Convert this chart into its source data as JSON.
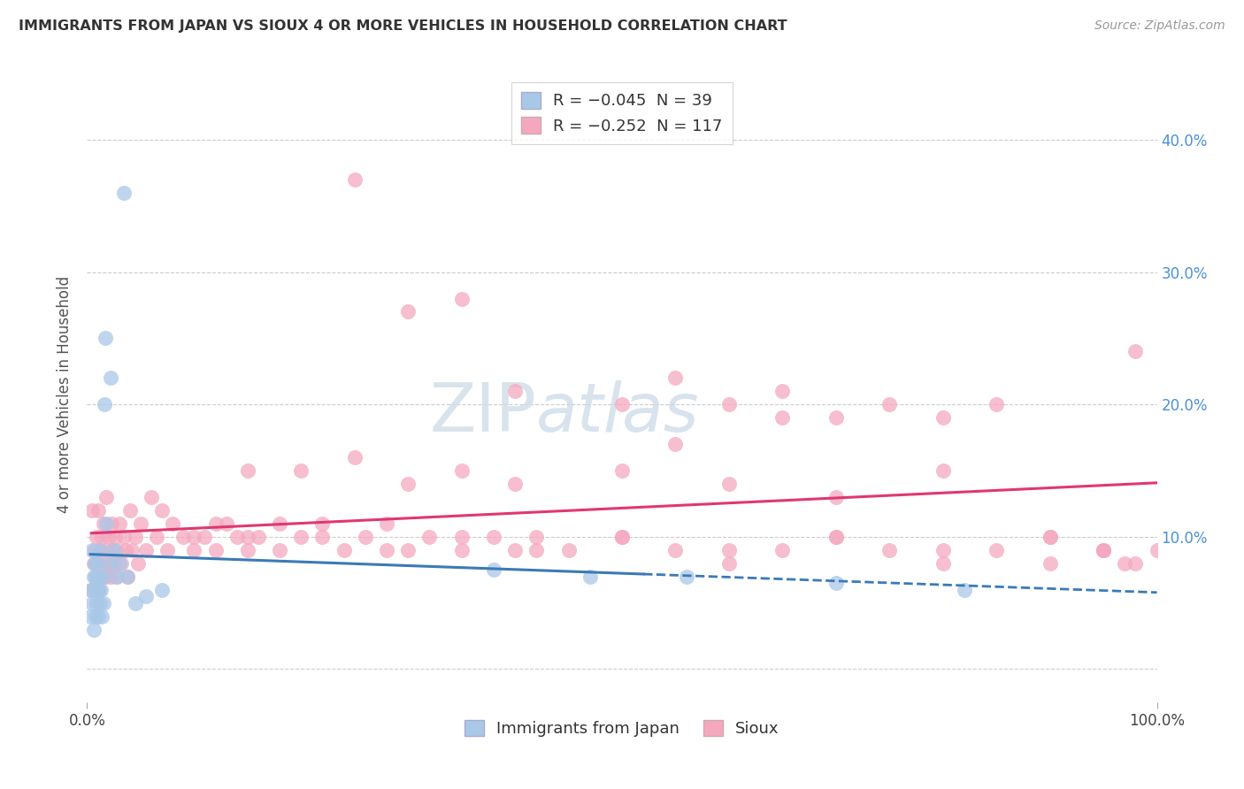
{
  "title": "IMMIGRANTS FROM JAPAN VS SIOUX 4 OR MORE VEHICLES IN HOUSEHOLD CORRELATION CHART",
  "source": "Source: ZipAtlas.com",
  "ylabel": "4 or more Vehicles in Household",
  "y_ticks": [
    0.0,
    0.1,
    0.2,
    0.3,
    0.4
  ],
  "y_tick_labels": [
    "",
    "10.0%",
    "20.0%",
    "30.0%",
    "40.0%"
  ],
  "xlim": [
    0.0,
    1.0
  ],
  "ylim": [
    -0.025,
    0.44
  ],
  "legend_label1": "R = −0.045  N = 39",
  "legend_label2": "R = −0.252  N = 117",
  "legend_series1": "Immigrants from Japan",
  "legend_series2": "Sioux",
  "color_japan": "#a8c8e8",
  "color_sioux": "#f4a8c0",
  "line_color_japan": "#3a7ab8",
  "line_color_sioux": "#e03870",
  "background_color": "#ffffff",
  "japan_x": [
    0.003,
    0.004,
    0.005,
    0.005,
    0.006,
    0.006,
    0.007,
    0.007,
    0.008,
    0.008,
    0.009,
    0.009,
    0.01,
    0.01,
    0.011,
    0.012,
    0.012,
    0.013,
    0.014,
    0.015,
    0.015,
    0.016,
    0.017,
    0.018,
    0.02,
    0.022,
    0.025,
    0.028,
    0.03,
    0.034,
    0.038,
    0.045,
    0.055,
    0.07,
    0.38,
    0.47,
    0.56,
    0.7,
    0.82
  ],
  "japan_y": [
    0.04,
    0.06,
    0.05,
    0.09,
    0.07,
    0.03,
    0.08,
    0.06,
    0.04,
    0.07,
    0.05,
    0.08,
    0.06,
    0.04,
    0.07,
    0.05,
    0.09,
    0.06,
    0.04,
    0.07,
    0.05,
    0.2,
    0.25,
    0.11,
    0.08,
    0.22,
    0.09,
    0.07,
    0.08,
    0.36,
    0.07,
    0.05,
    0.055,
    0.06,
    0.075,
    0.07,
    0.07,
    0.065,
    0.06
  ],
  "sioux_x": [
    0.004,
    0.005,
    0.006,
    0.007,
    0.008,
    0.009,
    0.01,
    0.01,
    0.011,
    0.012,
    0.013,
    0.014,
    0.015,
    0.016,
    0.017,
    0.018,
    0.019,
    0.02,
    0.021,
    0.022,
    0.023,
    0.024,
    0.025,
    0.026,
    0.027,
    0.028,
    0.03,
    0.032,
    0.034,
    0.036,
    0.038,
    0.04,
    0.042,
    0.045,
    0.048,
    0.05,
    0.055,
    0.06,
    0.065,
    0.07,
    0.075,
    0.08,
    0.09,
    0.1,
    0.11,
    0.12,
    0.13,
    0.14,
    0.15,
    0.16,
    0.18,
    0.2,
    0.22,
    0.24,
    0.26,
    0.28,
    0.3,
    0.32,
    0.35,
    0.38,
    0.4,
    0.42,
    0.45,
    0.5,
    0.55,
    0.6,
    0.65,
    0.7,
    0.75,
    0.8,
    0.85,
    0.9,
    0.95,
    0.98,
    1.0,
    0.25,
    0.3,
    0.35,
    0.4,
    0.5,
    0.55,
    0.6,
    0.65,
    0.7,
    0.75,
    0.8,
    0.85,
    0.9,
    0.95,
    0.97,
    0.15,
    0.2,
    0.25,
    0.3,
    0.35,
    0.4,
    0.5,
    0.6,
    0.7,
    0.8,
    0.1,
    0.12,
    0.15,
    0.18,
    0.22,
    0.28,
    0.35,
    0.42,
    0.5,
    0.6,
    0.7,
    0.8,
    0.9,
    0.95,
    0.98,
    0.55,
    0.65
  ],
  "sioux_y": [
    0.06,
    0.12,
    0.08,
    0.09,
    0.07,
    0.1,
    0.08,
    0.12,
    0.06,
    0.09,
    0.07,
    0.1,
    0.11,
    0.08,
    0.07,
    0.13,
    0.09,
    0.1,
    0.08,
    0.07,
    0.11,
    0.09,
    0.08,
    0.1,
    0.07,
    0.09,
    0.11,
    0.08,
    0.1,
    0.09,
    0.07,
    0.12,
    0.09,
    0.1,
    0.08,
    0.11,
    0.09,
    0.13,
    0.1,
    0.12,
    0.09,
    0.11,
    0.1,
    0.09,
    0.1,
    0.09,
    0.11,
    0.1,
    0.09,
    0.1,
    0.09,
    0.1,
    0.11,
    0.09,
    0.1,
    0.11,
    0.09,
    0.1,
    0.09,
    0.1,
    0.09,
    0.1,
    0.09,
    0.1,
    0.09,
    0.08,
    0.09,
    0.1,
    0.09,
    0.08,
    0.09,
    0.08,
    0.09,
    0.08,
    0.09,
    0.37,
    0.27,
    0.28,
    0.21,
    0.2,
    0.22,
    0.2,
    0.21,
    0.19,
    0.2,
    0.19,
    0.2,
    0.1,
    0.09,
    0.08,
    0.15,
    0.15,
    0.16,
    0.14,
    0.15,
    0.14,
    0.15,
    0.14,
    0.13,
    0.15,
    0.1,
    0.11,
    0.1,
    0.11,
    0.1,
    0.09,
    0.1,
    0.09,
    0.1,
    0.09,
    0.1,
    0.09,
    0.1,
    0.09,
    0.24,
    0.17,
    0.19
  ]
}
